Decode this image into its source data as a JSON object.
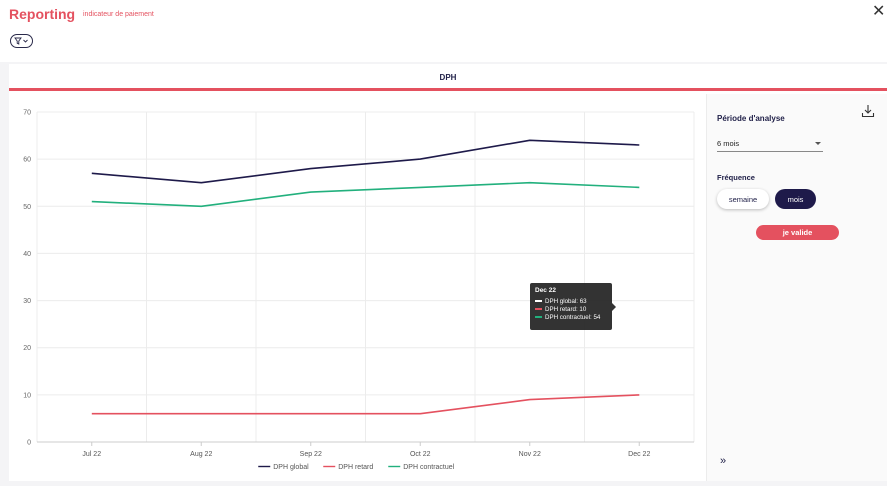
{
  "header": {
    "brand": "Reporting",
    "subtitle": "indicateur de paiement",
    "close_icon": "close-icon",
    "filter_icon": "filter-icon"
  },
  "tab": {
    "label": "DPH"
  },
  "panel": {
    "periode_label": "Période d'analyse",
    "periode_value": "6 mois",
    "frequence_label": "Fréquence",
    "freq_options": [
      "semaine",
      "mois"
    ],
    "selected_freq": "mois",
    "validate_label": "je valide",
    "expand_label": "»",
    "download_icon": "download-icon"
  },
  "tooltip": {
    "title": "Dec 22",
    "rows": [
      "DPH global: 63",
      "DPH retard: 10",
      "DPH contractuel: 54"
    ]
  },
  "colors": {
    "accent": "#e4515f",
    "navy": "#1e1a4a",
    "green": "#22b07d"
  },
  "chart_data": {
    "type": "line",
    "categories": [
      "Jul 22",
      "Aug 22",
      "Sep 22",
      "Oct 22",
      "Nov 22",
      "Dec 22"
    ],
    "ylim": [
      0,
      70
    ],
    "yticks": [
      0,
      10,
      20,
      30,
      40,
      50,
      60,
      70
    ],
    "grid": true,
    "legend_position": "bottom",
    "series": [
      {
        "name": "DPH global",
        "color": "#1e1a4a",
        "values": [
          57,
          55,
          58,
          60,
          64,
          63
        ]
      },
      {
        "name": "DPH retard",
        "color": "#e4515f",
        "values": [
          6,
          6,
          6,
          6,
          9,
          10
        ]
      },
      {
        "name": "DPH contractuel",
        "color": "#22b07d",
        "values": [
          51,
          50,
          53,
          54,
          55,
          54
        ]
      }
    ]
  }
}
